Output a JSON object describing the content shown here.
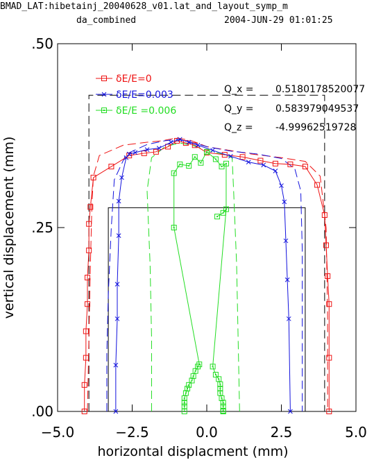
{
  "header": {
    "line1": "BMAD_LAT:hibetainj_20040628_v01.lat_and_layout_symp_m",
    "line2_left": "da_combined",
    "line2_right": "2004-JUN-29  01:01:25"
  },
  "tunes": [
    {
      "label": "Q_x  =",
      "value": "0.5180178520077"
    },
    {
      "label": "Q_y  =",
      "value": "0.583979049537"
    },
    {
      "label": "Q_z  =",
      "value": "-4.99962519728"
    }
  ],
  "chart_data": {
    "type": "line",
    "xlabel": "horizontal displacment (mm)",
    "ylabel": "vertical displacement (mm)",
    "xlim": [
      -5.0,
      5.0
    ],
    "ylim": [
      0.0,
      0.5
    ],
    "x_ticks": [
      -5.0,
      -2.5,
      0.0,
      2.5,
      5.0
    ],
    "x_tick_labels": [
      "−5.0",
      "−2.5",
      "0.0",
      "2.5",
      "5.0"
    ],
    "y_ticks": [
      0.0,
      0.25,
      0.5
    ],
    "y_tick_labels": [
      ".00",
      ".25",
      ".50"
    ],
    "colors": {
      "red": "#ee1111",
      "blue": "#1111dd",
      "green": "#22dd22",
      "black": "#000000"
    },
    "legend_position": "top-left",
    "series": [
      {
        "name": "δE/E=0",
        "color": "#ee1111",
        "marker": "square",
        "x": [
          -4.1,
          -4.1,
          -4.05,
          -4.05,
          -4.0,
          -4.0,
          -3.95,
          -3.95,
          -3.9,
          -3.8,
          -3.2,
          -2.6,
          -2.1,
          -1.7,
          -1.3,
          -1.0,
          -0.7,
          -0.4,
          0.0,
          0.6,
          1.2,
          1.8,
          2.3,
          2.8,
          3.3,
          3.7,
          3.95,
          4.0,
          4.05,
          4.1,
          4.1,
          4.1
        ],
        "y": [
          0.0,
          0.036,
          0.073,
          0.109,
          0.146,
          0.182,
          0.219,
          0.255,
          0.278,
          0.318,
          0.333,
          0.348,
          0.351,
          0.353,
          0.36,
          0.368,
          0.365,
          0.362,
          0.352,
          0.349,
          0.346,
          0.341,
          0.337,
          0.336,
          0.333,
          0.308,
          0.267,
          0.226,
          0.184,
          0.146,
          0.073,
          0.0
        ]
      },
      {
        "name": "δE/E=0.003",
        "color": "#1111dd",
        "marker": "x",
        "x": [
          -3.05,
          -3.05,
          -3.0,
          -3.0,
          -2.95,
          -2.95,
          -2.85,
          -2.7,
          -2.6,
          -2.4,
          -2.0,
          -1.6,
          -1.2,
          -0.9,
          -0.6,
          -0.3,
          0.2,
          0.8,
          1.4,
          1.9,
          2.3,
          2.5,
          2.6,
          2.65,
          2.7,
          2.75,
          2.8
        ],
        "y": [
          0.0,
          0.063,
          0.126,
          0.173,
          0.239,
          0.286,
          0.318,
          0.345,
          0.35,
          0.352,
          0.356,
          0.358,
          0.366,
          0.37,
          0.366,
          0.362,
          0.355,
          0.347,
          0.339,
          0.335,
          0.327,
          0.307,
          0.285,
          0.232,
          0.179,
          0.126,
          0.0
        ]
      },
      {
        "name": "δE/E =0.006",
        "color": "#22dd22",
        "marker": "boxdot",
        "x": [
          -0.75,
          -0.75,
          -0.75,
          -0.75,
          -0.7,
          -0.65,
          -0.6,
          -0.5,
          -0.45,
          -0.38,
          -0.3,
          -0.25,
          -1.1,
          -1.1,
          -0.9,
          -0.6,
          -0.4,
          -0.2,
          0.0,
          0.3,
          0.5,
          0.65,
          0.65,
          0.55,
          0.35,
          0.2,
          0.3,
          0.4,
          0.45,
          0.45,
          0.45,
          0.5,
          0.55,
          0.55,
          0.55,
          0.55,
          0.55
        ],
        "y": [
          0.0,
          0.007,
          0.012,
          0.018,
          0.025,
          0.031,
          0.036,
          0.042,
          0.048,
          0.055,
          0.061,
          0.064,
          0.25,
          0.324,
          0.336,
          0.334,
          0.346,
          0.338,
          0.353,
          0.343,
          0.333,
          0.337,
          0.275,
          0.27,
          0.265,
          0.061,
          0.05,
          0.044,
          0.037,
          0.031,
          0.025,
          0.018,
          0.012,
          0.007,
          0.001,
          0.0,
          0.0
        ]
      }
    ],
    "dashed_envelopes": [
      {
        "color": "#ee1111",
        "x": [
          -4.0,
          -3.95,
          -3.9,
          -3.85,
          -3.8,
          -3.6,
          -2.8,
          -2.0,
          -1.5,
          -1.0,
          -0.5,
          0.0,
          0.6,
          1.5,
          2.5,
          3.3,
          3.8,
          4.0,
          4.05,
          4.05
        ],
        "y": [
          0.0,
          0.1,
          0.2,
          0.28,
          0.32,
          0.348,
          0.362,
          0.366,
          0.368,
          0.372,
          0.368,
          0.36,
          0.356,
          0.35,
          0.345,
          0.34,
          0.32,
          0.25,
          0.13,
          0.0
        ]
      },
      {
        "color": "#1111dd",
        "x": [
          -3.35,
          -3.35,
          -3.3,
          -3.2,
          -3.1,
          -2.7,
          -2.0,
          -1.4,
          -1.0,
          -0.5,
          0.0,
          0.8,
          1.7,
          2.5,
          2.95,
          3.15,
          3.2,
          3.2,
          3.2
        ],
        "y": [
          0.0,
          0.08,
          0.16,
          0.25,
          0.315,
          0.35,
          0.363,
          0.368,
          0.37,
          0.366,
          0.36,
          0.354,
          0.35,
          0.344,
          0.33,
          0.3,
          0.22,
          0.1,
          0.0
        ]
      },
      {
        "color": "#22dd22",
        "x": [
          -1.85,
          -1.85,
          -1.9,
          -2.0,
          -1.85,
          -1.4,
          -0.9,
          -0.5,
          0.0,
          0.5,
          0.85,
          0.9,
          1.0,
          1.05,
          1.1
        ],
        "y": [
          0.0,
          0.1,
          0.2,
          0.3,
          0.345,
          0.36,
          0.365,
          0.362,
          0.355,
          0.35,
          0.345,
          0.3,
          0.2,
          0.1,
          0.0
        ]
      }
    ],
    "rectangles": [
      {
        "style": "dashed",
        "x0": -3.95,
        "x1": 3.95,
        "y0": 0.0,
        "y1": 0.43
      },
      {
        "style": "solid",
        "x0": -3.3,
        "x1": 3.3,
        "y0": 0.0,
        "y1": 0.277
      }
    ]
  }
}
